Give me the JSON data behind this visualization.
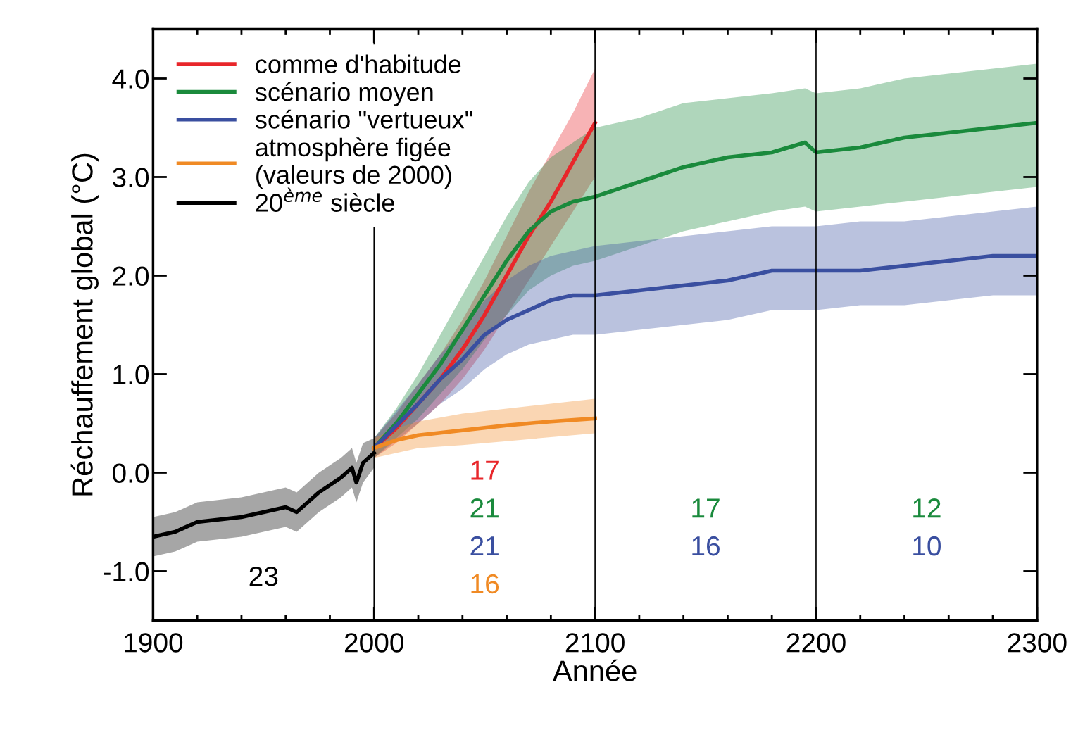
{
  "chart_data": {
    "type": "line",
    "xlabel": "Année",
    "ylabel": "Réchauffement global (°C)",
    "xlim": [
      1900,
      2300
    ],
    "ylim": [
      -1.5,
      4.5
    ],
    "xticks": [
      1900,
      2000,
      2100,
      2200,
      2300
    ],
    "yticks": [
      {
        "value": -1,
        "label": "-1.0"
      },
      {
        "value": 0,
        "label": "0.0"
      },
      {
        "value": 1,
        "label": "1.0"
      },
      {
        "value": 2,
        "label": "2.0"
      },
      {
        "value": 3,
        "label": "3.0"
      },
      {
        "value": 4,
        "label": "4.0"
      }
    ],
    "grid": false,
    "legend": "top left",
    "series": [
      {
        "name": "comme d'habitude",
        "color": "#e8262a",
        "x": [
          2000,
          2010,
          2020,
          2030,
          2040,
          2050,
          2060,
          2070,
          2080,
          2090,
          2100
        ],
        "values": [
          0.25,
          0.45,
          0.7,
          0.95,
          1.25,
          1.6,
          2.0,
          2.4,
          2.75,
          3.15,
          3.55
        ],
        "lower": [
          0.15,
          0.3,
          0.5,
          0.7,
          0.95,
          1.25,
          1.6,
          1.95,
          2.3,
          2.65,
          3.0
        ],
        "upper": [
          0.35,
          0.6,
          0.9,
          1.2,
          1.55,
          1.95,
          2.4,
          2.85,
          3.25,
          3.65,
          4.1
        ]
      },
      {
        "name": "scénario moyen",
        "color": "#1a8a3c",
        "x": [
          2000,
          2010,
          2020,
          2030,
          2040,
          2050,
          2060,
          2070,
          2080,
          2090,
          2100,
          2120,
          2140,
          2160,
          2180,
          2195,
          2200,
          2220,
          2240,
          2260,
          2280,
          2300
        ],
        "values": [
          0.25,
          0.5,
          0.8,
          1.1,
          1.45,
          1.8,
          2.15,
          2.45,
          2.65,
          2.75,
          2.8,
          2.95,
          3.1,
          3.2,
          3.25,
          3.35,
          3.25,
          3.3,
          3.4,
          3.45,
          3.5,
          3.55
        ],
        "lower": [
          0.15,
          0.35,
          0.55,
          0.8,
          1.05,
          1.35,
          1.6,
          1.85,
          2.0,
          2.1,
          2.15,
          2.3,
          2.45,
          2.55,
          2.65,
          2.7,
          2.65,
          2.7,
          2.75,
          2.8,
          2.85,
          2.9
        ],
        "upper": [
          0.35,
          0.65,
          1.0,
          1.4,
          1.8,
          2.2,
          2.6,
          2.95,
          3.2,
          3.35,
          3.5,
          3.6,
          3.75,
          3.8,
          3.85,
          3.9,
          3.85,
          3.9,
          4.0,
          4.05,
          4.1,
          4.15
        ]
      },
      {
        "name": "scénario \"vertueux\"",
        "color": "#3a4fa0",
        "x": [
          2000,
          2020,
          2030,
          2040,
          2050,
          2060,
          2070,
          2080,
          2090,
          2100,
          2120,
          2140,
          2160,
          2180,
          2200,
          2220,
          2240,
          2260,
          2280,
          2300
        ],
        "values": [
          0.25,
          0.7,
          0.95,
          1.15,
          1.4,
          1.55,
          1.65,
          1.75,
          1.8,
          1.8,
          1.85,
          1.9,
          1.95,
          2.05,
          2.05,
          2.05,
          2.1,
          2.15,
          2.2,
          2.2
        ],
        "lower": [
          0.15,
          0.5,
          0.7,
          0.85,
          1.05,
          1.2,
          1.3,
          1.35,
          1.4,
          1.4,
          1.45,
          1.5,
          1.55,
          1.65,
          1.65,
          1.7,
          1.7,
          1.75,
          1.8,
          1.8
        ],
        "upper": [
          0.35,
          0.9,
          1.2,
          1.45,
          1.75,
          1.95,
          2.1,
          2.2,
          2.25,
          2.3,
          2.35,
          2.4,
          2.45,
          2.5,
          2.5,
          2.55,
          2.55,
          2.6,
          2.65,
          2.7
        ]
      },
      {
        "name": "atmosphère figée\n(valeurs de 2000)",
        "color": "#f08a24",
        "x": [
          2000,
          2010,
          2020,
          2040,
          2060,
          2080,
          2100
        ],
        "values": [
          0.25,
          0.33,
          0.38,
          0.43,
          0.48,
          0.52,
          0.55
        ],
        "lower": [
          0.15,
          0.2,
          0.25,
          0.28,
          0.32,
          0.36,
          0.4
        ],
        "upper": [
          0.35,
          0.45,
          0.52,
          0.6,
          0.65,
          0.7,
          0.75
        ]
      },
      {
        "name": "20$^{ème}$ siècle",
        "color": "#000000",
        "x": [
          1900,
          1910,
          1920,
          1940,
          1960,
          1965,
          1975,
          1985,
          1990,
          1992,
          1995,
          2000
        ],
        "values": [
          -0.65,
          -0.6,
          -0.5,
          -0.45,
          -0.35,
          -0.4,
          -0.2,
          -0.05,
          0.05,
          -0.1,
          0.1,
          0.2
        ],
        "lower": [
          -0.85,
          -0.8,
          -0.7,
          -0.65,
          -0.55,
          -0.6,
          -0.4,
          -0.25,
          -0.15,
          -0.3,
          -0.1,
          0.05
        ],
        "upper": [
          -0.45,
          -0.4,
          -0.3,
          -0.25,
          -0.15,
          -0.2,
          0.0,
          0.15,
          0.25,
          0.1,
          0.3,
          0.35
        ]
      }
    ],
    "ref_lines": [
      {
        "axis": "x",
        "value": 2000,
        "color": "#000000"
      },
      {
        "axis": "x",
        "value": 2100,
        "color": "#000000"
      },
      {
        "axis": "x",
        "value": 2200,
        "color": "#000000"
      }
    ],
    "annotations": [
      "23",
      "17",
      "21",
      "21",
      "16",
      "17",
      "16",
      "12",
      "10"
    ]
  }
}
